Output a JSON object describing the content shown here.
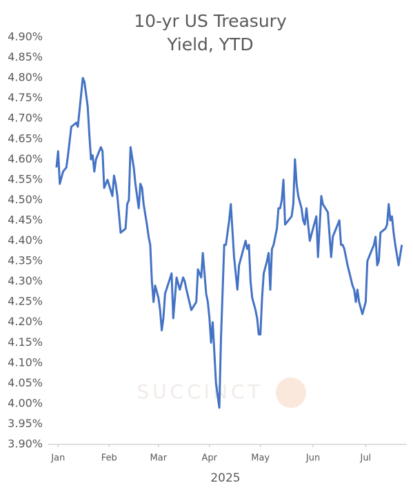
{
  "chart_data": {
    "type": "line",
    "title": "10-yr US Treasury Yield, YTD",
    "x_label": "2025",
    "watermark": "SUCCINCT",
    "x": [
      2,
      3,
      4,
      6,
      8,
      9,
      11,
      14,
      15,
      17,
      18,
      19,
      21,
      22,
      23,
      24,
      25,
      26,
      29,
      30,
      31,
      33,
      36,
      37,
      38,
      39,
      41,
      44,
      45,
      46,
      47,
      49,
      50,
      52,
      53,
      54,
      55,
      57,
      58,
      59,
      60,
      61,
      62,
      64,
      65,
      66,
      67,
      68,
      72,
      73,
      75,
      77,
      79,
      80,
      81,
      84,
      87,
      88,
      90,
      91,
      92,
      93,
      94,
      95,
      96,
      97,
      99,
      101,
      102,
      104,
      105,
      107,
      108,
      110,
      111,
      112,
      113,
      115,
      117,
      118,
      119,
      120,
      121,
      123,
      124,
      125,
      126,
      127,
      128,
      130,
      131,
      132,
      133,
      134,
      136,
      137,
      138,
      139,
      140,
      141,
      143,
      145,
      146,
      147,
      148,
      149,
      151,
      152,
      153,
      154,
      156,
      158,
      160,
      161,
      163,
      164,
      167,
      169,
      170,
      172,
      174,
      175,
      176,
      177,
      179,
      182,
      183,
      184,
      185,
      186,
      188,
      190,
      191,
      193,
      195,
      196,
      197,
      198,
      199,
      202,
      203,
      204,
      205,
      206,
      207,
      208,
      210,
      212
    ],
    "series": [
      {
        "name": "10-yr US Treasury",
        "color": "#4472c4",
        "values": [
          4.58,
          4.62,
          4.54,
          4.57,
          4.58,
          4.61,
          4.68,
          4.69,
          4.68,
          4.76,
          4.8,
          4.79,
          4.73,
          4.66,
          4.6,
          4.61,
          4.57,
          4.6,
          4.63,
          4.62,
          4.53,
          4.55,
          4.51,
          4.56,
          4.54,
          4.51,
          4.42,
          4.43,
          4.49,
          4.5,
          4.63,
          4.58,
          4.54,
          4.48,
          4.54,
          4.53,
          4.49,
          4.44,
          4.41,
          4.39,
          4.3,
          4.25,
          4.29,
          4.26,
          4.23,
          4.18,
          4.21,
          4.27,
          4.32,
          4.21,
          4.31,
          4.28,
          4.31,
          4.3,
          4.28,
          4.23,
          4.25,
          4.33,
          4.31,
          4.37,
          4.32,
          4.27,
          4.25,
          4.21,
          4.15,
          4.2,
          4.05,
          3.99,
          4.16,
          4.39,
          4.39,
          4.45,
          4.49,
          4.36,
          4.32,
          4.28,
          4.34,
          4.37,
          4.4,
          4.38,
          4.39,
          4.3,
          4.26,
          4.23,
          4.21,
          4.17,
          4.17,
          4.26,
          4.32,
          4.35,
          4.37,
          4.28,
          4.38,
          4.39,
          4.43,
          4.48,
          4.48,
          4.5,
          4.55,
          4.44,
          4.45,
          4.46,
          4.49,
          4.6,
          4.54,
          4.51,
          4.48,
          4.45,
          4.44,
          4.48,
          4.4,
          4.43,
          4.46,
          4.36,
          4.51,
          4.49,
          4.47,
          4.36,
          4.41,
          4.43,
          4.45,
          4.39,
          4.39,
          4.38,
          4.34,
          4.29,
          4.28,
          4.25,
          4.28,
          4.25,
          4.22,
          4.25,
          4.35,
          4.37,
          4.39,
          4.41,
          4.34,
          4.35,
          4.42,
          4.43,
          4.44,
          4.49,
          4.45,
          4.46,
          4.42,
          4.39,
          4.34,
          4.39
        ]
      }
    ],
    "xlim": [
      -3,
      215
    ],
    "xticks": [
      {
        "value": 3,
        "label": "Jan"
      },
      {
        "value": 34,
        "label": "Feb"
      },
      {
        "value": 64,
        "label": "Mar"
      },
      {
        "value": 95,
        "label": "Apr"
      },
      {
        "value": 126,
        "label": "May"
      },
      {
        "value": 158,
        "label": "Jun"
      },
      {
        "value": 190,
        "label": "Jul"
      }
    ],
    "ylim": [
      3.9,
      4.9
    ],
    "yticks": [
      {
        "value": 3.9,
        "label": "3.90%"
      },
      {
        "value": 3.95,
        "label": "3.95%"
      },
      {
        "value": 4.0,
        "label": "4.00%"
      },
      {
        "value": 4.05,
        "label": "4.05%"
      },
      {
        "value": 4.1,
        "label": "4.10%"
      },
      {
        "value": 4.15,
        "label": "4.15%"
      },
      {
        "value": 4.2,
        "label": "4.20%"
      },
      {
        "value": 4.25,
        "label": "4.25%"
      },
      {
        "value": 4.3,
        "label": "4.30%"
      },
      {
        "value": 4.35,
        "label": "4.35%"
      },
      {
        "value": 4.4,
        "label": "4.40%"
      },
      {
        "value": 4.45,
        "label": "4.45%"
      },
      {
        "value": 4.5,
        "label": "4.50%"
      },
      {
        "value": 4.55,
        "label": "4.55%"
      },
      {
        "value": 4.6,
        "label": "4.60%"
      },
      {
        "value": 4.65,
        "label": "4.65%"
      },
      {
        "value": 4.7,
        "label": "4.70%"
      },
      {
        "value": 4.75,
        "label": "4.75%"
      },
      {
        "value": 4.8,
        "label": "4.80%"
      },
      {
        "value": 4.85,
        "label": "4.85%"
      },
      {
        "value": 4.9,
        "label": "4.90%"
      }
    ],
    "grid": false
  }
}
